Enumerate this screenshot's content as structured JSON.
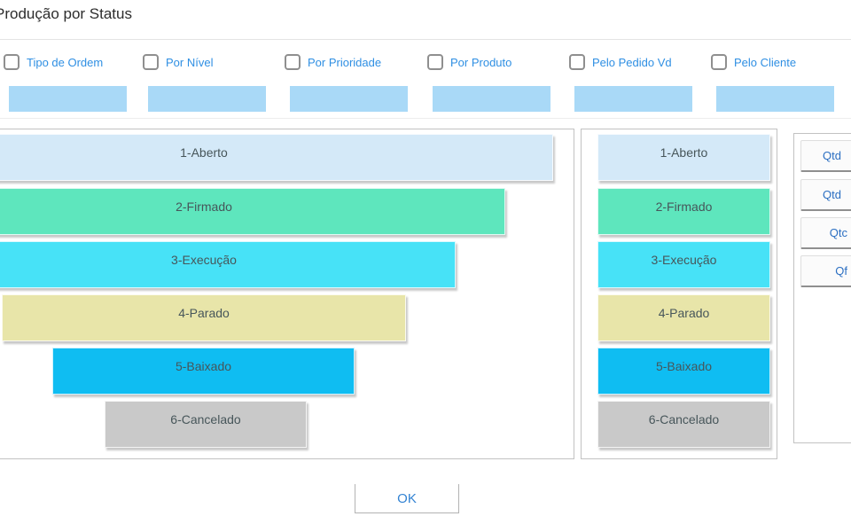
{
  "window": {
    "title": "Produção por Status"
  },
  "filters": [
    {
      "label": "Tipo de Ordem",
      "checked": false,
      "value": ""
    },
    {
      "label": "Por Nível",
      "checked": false,
      "value": ""
    },
    {
      "label": "Por Prioridade",
      "checked": false,
      "value": ""
    },
    {
      "label": "Por Produto",
      "checked": false,
      "value": ""
    },
    {
      "label": "Pelo Pedido Vd",
      "checked": false,
      "value": ""
    },
    {
      "label": "Pelo Cliente",
      "checked": false,
      "value": ""
    }
  ],
  "statuses": [
    {
      "label": "1-Aberto",
      "color": "#d4e9f8",
      "funnel_width": 788
    },
    {
      "label": "2-Firmado",
      "color": "#5ee6bd",
      "funnel_width": 680
    },
    {
      "label": "3-Execução",
      "color": "#47e2f7",
      "funnel_width": 568
    },
    {
      "label": "4-Parado",
      "color": "#e8e5a9",
      "funnel_width": 456
    },
    {
      "label": "5-Baixado",
      "color": "#0fbdf2",
      "funnel_width": 341
    },
    {
      "label": "6-Cancelado",
      "color": "#c9c9c9",
      "funnel_width": 228
    }
  ],
  "qty_buttons": [
    {
      "label": "Qtd"
    },
    {
      "label": "Qtd"
    },
    {
      "label": "Qtc"
    },
    {
      "label": "Qf"
    }
  ],
  "ok_button": {
    "label": "OK"
  },
  "colors": {
    "filter_label_blue": "#2f8fe3",
    "field_blue": "#a9d9f7",
    "qty_text_blue": "#2b6fc2",
    "ok_text_blue": "#3383d3",
    "panel_border": "#c2c2c2"
  }
}
